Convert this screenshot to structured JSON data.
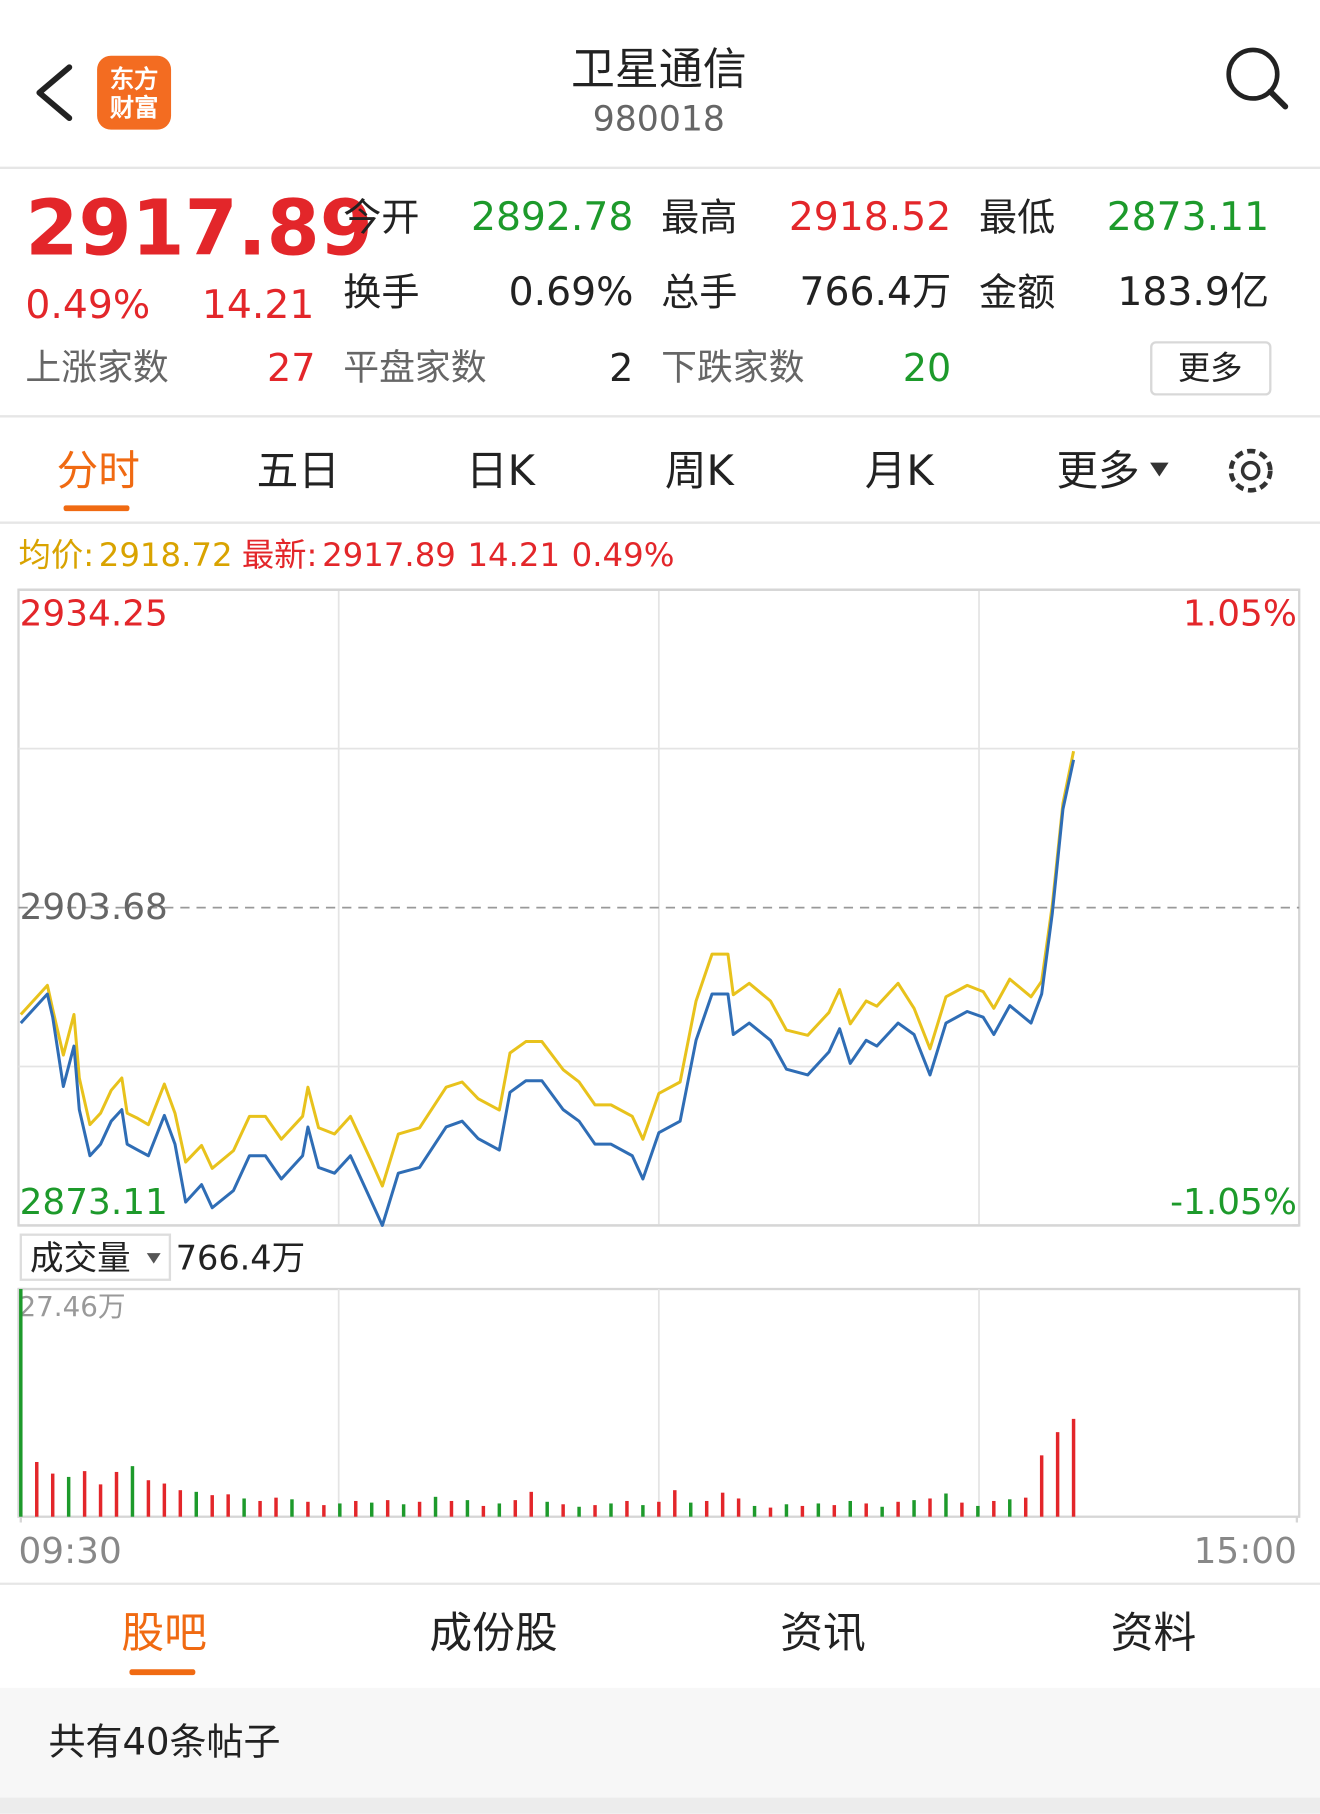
{
  "header": {
    "logo": [
      "东方",
      "财富"
    ],
    "title": "卫星通信",
    "code": "980018"
  },
  "quote": {
    "price": "2917.89",
    "change_pct": "0.49%",
    "change": "14.21",
    "stats": [
      {
        "label": "今开",
        "value": "2892.78"
      },
      {
        "label": "最高",
        "value": "2918.52"
      },
      {
        "label": "最低",
        "value": "2873.11"
      },
      {
        "label": "换手",
        "value": "0.69%"
      },
      {
        "label": "总手",
        "value": "766.4万"
      },
      {
        "label": "金额",
        "value": "183.9亿"
      }
    ],
    "breadth": [
      {
        "label": "上涨家数",
        "value": "27"
      },
      {
        "label": "平盘家数",
        "value": "2"
      },
      {
        "label": "下跌家数",
        "value": "20"
      }
    ],
    "more": "更多"
  },
  "tabs": [
    "分时",
    "五日",
    "日K",
    "周K",
    "月K",
    "更多"
  ],
  "info": {
    "avg": "2918.72",
    "latest": "2917.89",
    "change": "14.21",
    "change_pct": "0.49%"
  },
  "volume_header": {
    "label": "成交量",
    "value": "766.4万"
  },
  "chart_data": [
    {
      "type": "line",
      "xlim": [
        0,
        240
      ],
      "ylim": [
        2873.11,
        2934.25
      ],
      "yticks": [
        2934.25,
        2903.68,
        2873.11
      ],
      "y2lim": [
        -1.05,
        1.05
      ],
      "y2ticks": [
        {
          "value": 1.05,
          "label": "1.05%"
        },
        {
          "value": -1.05,
          "label": "-1.05%"
        }
      ],
      "x": [
        0,
        5,
        6,
        8,
        10,
        11,
        13,
        15,
        17,
        19,
        20,
        22,
        24,
        27,
        29,
        31,
        34,
        36,
        40,
        43,
        46,
        49,
        53,
        54,
        56,
        59,
        62,
        66,
        68,
        71,
        75,
        80,
        83,
        86,
        90,
        92,
        95,
        98,
        102,
        105,
        108,
        111,
        115,
        117,
        120,
        124,
        127,
        130,
        133,
        134,
        137,
        141,
        144,
        148,
        152,
        154,
        156,
        159,
        161,
        165,
        168,
        171,
        174,
        178,
        181,
        183,
        186,
        190,
        192,
        194,
        196,
        198
      ],
      "series": [
        {
          "name": "均价:",
          "color": "#e8c21c",
          "values": [
            2893.4,
            2896.2,
            2893.9,
            2889.5,
            2893.4,
            2887.3,
            2882.8,
            2883.9,
            2886.1,
            2887.3,
            2883.9,
            2883.4,
            2882.8,
            2886.7,
            2883.9,
            2879.2,
            2880.8,
            2878.6,
            2880.3,
            2883.6,
            2883.6,
            2881.4,
            2883.6,
            2886.4,
            2882.5,
            2881.9,
            2883.6,
            2879.2,
            2876.9,
            2881.9,
            2882.5,
            2886.4,
            2886.9,
            2885.3,
            2884.2,
            2889.7,
            2890.8,
            2890.8,
            2888.1,
            2886.9,
            2884.7,
            2884.7,
            2883.6,
            2881.4,
            2885.8,
            2886.9,
            2894.7,
            2899.2,
            2899.2,
            2895.3,
            2896.4,
            2894.7,
            2891.9,
            2891.4,
            2893.6,
            2895.8,
            2892.5,
            2894.7,
            2894.2,
            2896.4,
            2894.0,
            2890.1,
            2895.1,
            2896.2,
            2895.6,
            2894.0,
            2896.8,
            2895.1,
            2896.6,
            2903.9,
            2913.7,
            2918.72
          ]
        },
        {
          "name": "最新:",
          "color": "#2f6db5",
          "values": [
            2892.58,
            2895.36,
            2893.14,
            2886.47,
            2890.36,
            2884.25,
            2879.81,
            2880.92,
            2883.14,
            2884.25,
            2880.92,
            2880.36,
            2879.81,
            2883.69,
            2880.92,
            2875.36,
            2877.03,
            2874.81,
            2876.47,
            2879.81,
            2879.81,
            2877.58,
            2879.81,
            2882.58,
            2878.69,
            2878.14,
            2879.81,
            2875.36,
            2873.11,
            2878.14,
            2878.69,
            2882.58,
            2883.14,
            2881.47,
            2880.36,
            2885.92,
            2887.03,
            2887.03,
            2884.25,
            2883.14,
            2880.92,
            2880.92,
            2879.81,
            2877.58,
            2882.03,
            2883.14,
            2890.92,
            2895.36,
            2895.36,
            2891.47,
            2892.58,
            2890.92,
            2888.14,
            2887.58,
            2889.81,
            2892.03,
            2888.69,
            2890.92,
            2890.36,
            2892.58,
            2891.47,
            2887.58,
            2892.58,
            2893.69,
            2893.14,
            2891.47,
            2894.25,
            2892.58,
            2895.36,
            2903.14,
            2913.14,
            2917.89
          ]
        }
      ]
    },
    {
      "type": "bar",
      "xlim": [
        0,
        240
      ],
      "xticks": [
        {
          "value": 0,
          "label": "09:30"
        },
        {
          "value": 240,
          "label": "15:00"
        }
      ],
      "ylim": [
        0,
        27.46
      ],
      "yticks": [
        {
          "value": 27.46,
          "label": "27.46万"
        }
      ],
      "x": [
        0,
        3,
        6,
        9,
        12,
        15,
        18,
        21,
        24,
        27,
        30,
        33,
        36,
        39,
        42,
        45,
        48,
        51,
        54,
        57,
        60,
        63,
        66,
        69,
        72,
        75,
        78,
        81,
        84,
        87,
        90,
        93,
        96,
        99,
        102,
        105,
        108,
        111,
        114,
        117,
        120,
        123,
        126,
        129,
        132,
        135,
        138,
        141,
        144,
        147,
        150,
        153,
        156,
        159,
        162,
        165,
        168,
        171,
        174,
        177,
        180,
        183,
        186,
        189,
        192,
        195,
        198
      ],
      "values": [
        27.46,
        6.6,
        5.2,
        4.8,
        5.5,
        3.9,
        5.4,
        6.1,
        4.4,
        4.0,
        3.2,
        3.0,
        2.6,
        2.7,
        2.2,
        1.9,
        2.3,
        2.1,
        1.8,
        1.4,
        1.6,
        1.9,
        1.7,
        2.0,
        1.5,
        1.8,
        2.4,
        1.9,
        2.0,
        1.3,
        1.6,
        2.0,
        3.0,
        1.8,
        1.5,
        1.2,
        1.4,
        1.6,
        1.9,
        1.4,
        1.8,
        3.2,
        1.7,
        1.9,
        2.9,
        2.2,
        1.3,
        1.1,
        1.5,
        1.3,
        1.6,
        1.4,
        1.9,
        1.6,
        1.2,
        1.8,
        2.0,
        2.2,
        2.8,
        1.7,
        1.3,
        1.9,
        2.1,
        2.3,
        7.4,
        10.2,
        11.8
      ],
      "colors": [
        "#1d9a2b",
        "#e3262a",
        "#e3262a",
        "#1d9a2b",
        "#e3262a",
        "#e3262a",
        "#e3262a",
        "#1d9a2b",
        "#e3262a",
        "#e3262a",
        "#e3262a",
        "#1d9a2b",
        "#e3262a",
        "#e3262a",
        "#1d9a2b",
        "#e3262a",
        "#e3262a",
        "#1d9a2b",
        "#e3262a",
        "#e3262a",
        "#1d9a2b",
        "#e3262a",
        "#1d9a2b",
        "#e3262a",
        "#1d9a2b",
        "#e3262a",
        "#1d9a2b",
        "#e3262a",
        "#1d9a2b",
        "#e3262a",
        "#1d9a2b",
        "#e3262a",
        "#e3262a",
        "#1d9a2b",
        "#e3262a",
        "#1d9a2b",
        "#e3262a",
        "#1d9a2b",
        "#e3262a",
        "#1d9a2b",
        "#e3262a",
        "#e3262a",
        "#1d9a2b",
        "#e3262a",
        "#e3262a",
        "#e3262a",
        "#1d9a2b",
        "#e3262a",
        "#1d9a2b",
        "#e3262a",
        "#1d9a2b",
        "#e3262a",
        "#1d9a2b",
        "#e3262a",
        "#1d9a2b",
        "#e3262a",
        "#1d9a2b",
        "#e3262a",
        "#1d9a2b",
        "#e3262a",
        "#1d9a2b",
        "#e3262a",
        "#1d9a2b",
        "#e3262a",
        "#e3262a",
        "#e3262a",
        "#e3262a"
      ]
    }
  ],
  "bottom_tabs": [
    "股吧",
    "成份股",
    "资讯",
    "资料"
  ],
  "posts": "共有40条帖子"
}
